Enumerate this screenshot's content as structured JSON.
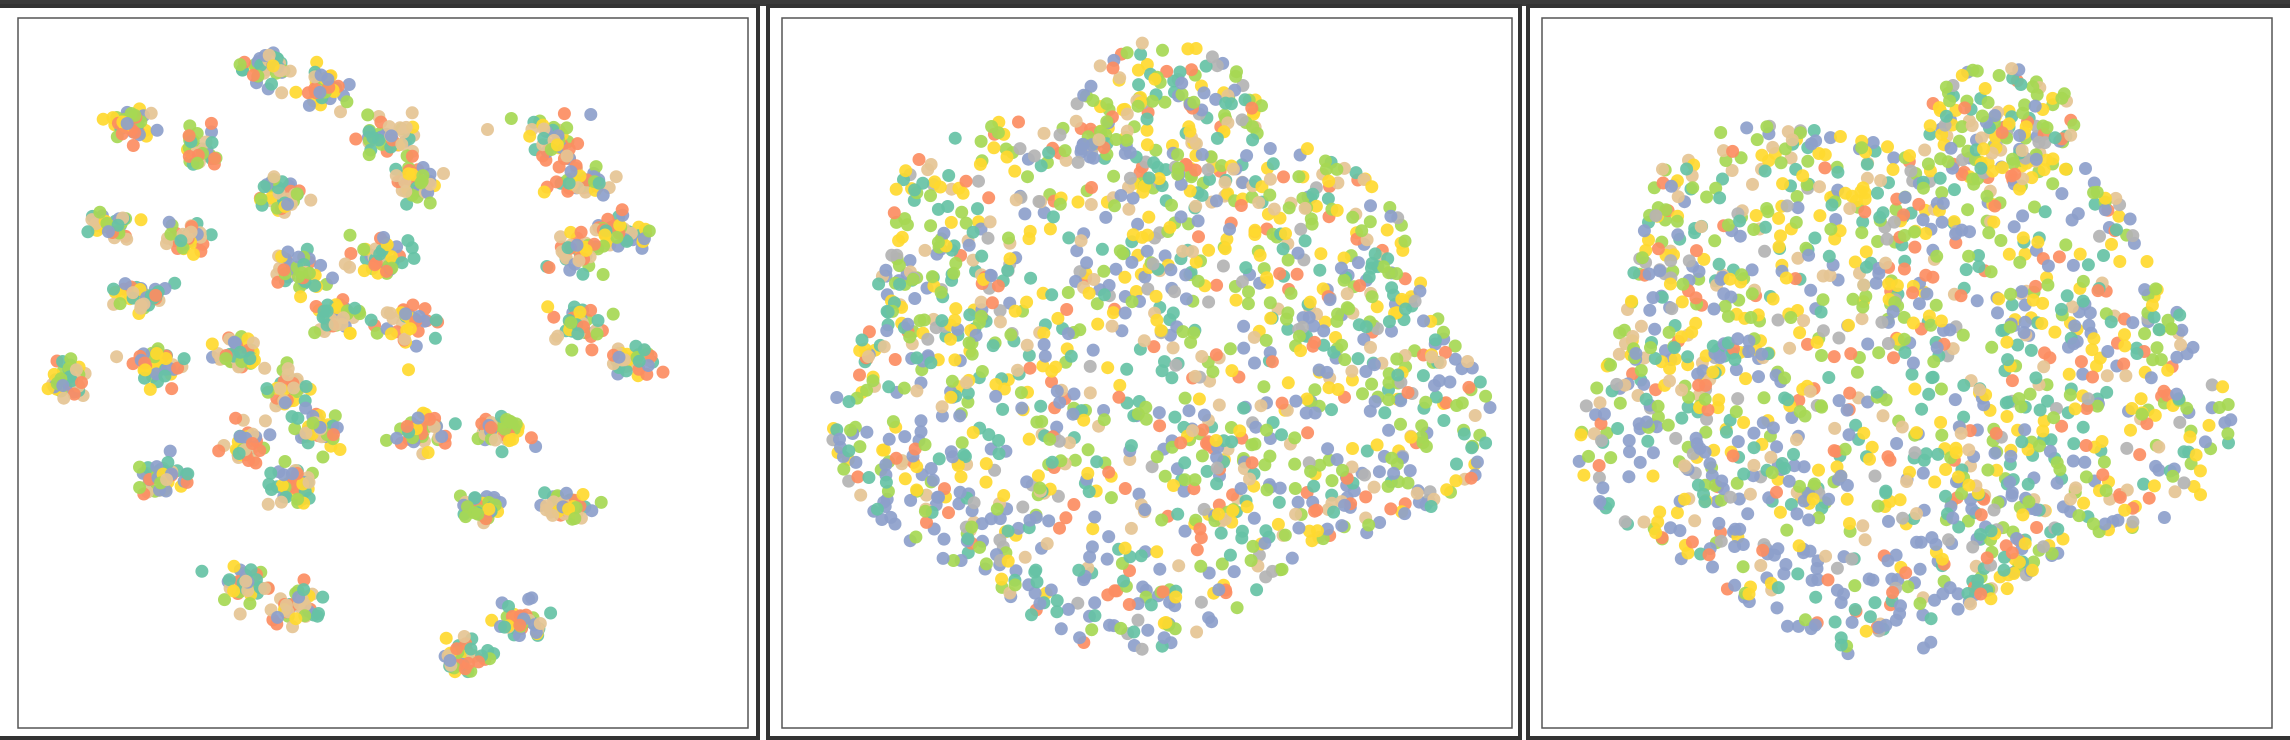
{
  "palette": [
    "#8da0cb",
    "#a6d854",
    "#ffd92f",
    "#66c2a5",
    "#fc8d62",
    "#e5c494",
    "#b3b3b3"
  ],
  "chart_data": [
    {
      "type": "scatter",
      "title": "",
      "xlabel": "",
      "ylabel": "",
      "axes_ticks": false,
      "grid": false,
      "legend": "none",
      "layout": "clustered",
      "clusters": [
        [
          0.34,
          0.07,
          0.04,
          0.03
        ],
        [
          0.42,
          0.1,
          0.04,
          0.03
        ],
        [
          0.15,
          0.15,
          0.03,
          0.025
        ],
        [
          0.25,
          0.19,
          0.03,
          0.035
        ],
        [
          0.51,
          0.17,
          0.05,
          0.035
        ],
        [
          0.55,
          0.23,
          0.04,
          0.035
        ],
        [
          0.36,
          0.25,
          0.04,
          0.035
        ],
        [
          0.13,
          0.29,
          0.035,
          0.025
        ],
        [
          0.23,
          0.31,
          0.035,
          0.03
        ],
        [
          0.5,
          0.34,
          0.06,
          0.03
        ],
        [
          0.38,
          0.36,
          0.04,
          0.035
        ],
        [
          0.44,
          0.42,
          0.04,
          0.03
        ],
        [
          0.17,
          0.39,
          0.05,
          0.025
        ],
        [
          0.54,
          0.43,
          0.05,
          0.04
        ],
        [
          0.07,
          0.51,
          0.03,
          0.035
        ],
        [
          0.19,
          0.49,
          0.04,
          0.035
        ],
        [
          0.3,
          0.47,
          0.035,
          0.03
        ],
        [
          0.37,
          0.52,
          0.035,
          0.035
        ],
        [
          0.41,
          0.58,
          0.04,
          0.035
        ],
        [
          0.55,
          0.58,
          0.04,
          0.03
        ],
        [
          0.66,
          0.58,
          0.04,
          0.03
        ],
        [
          0.2,
          0.65,
          0.035,
          0.035
        ],
        [
          0.31,
          0.6,
          0.04,
          0.035
        ],
        [
          0.38,
          0.66,
          0.04,
          0.035
        ],
        [
          0.64,
          0.69,
          0.04,
          0.025
        ],
        [
          0.75,
          0.69,
          0.04,
          0.025
        ],
        [
          0.31,
          0.8,
          0.04,
          0.03
        ],
        [
          0.38,
          0.83,
          0.05,
          0.03
        ],
        [
          0.61,
          0.9,
          0.04,
          0.03
        ],
        [
          0.69,
          0.85,
          0.035,
          0.035
        ],
        [
          0.73,
          0.17,
          0.05,
          0.035
        ],
        [
          0.78,
          0.23,
          0.05,
          0.03
        ],
        [
          0.83,
          0.3,
          0.05,
          0.03
        ],
        [
          0.77,
          0.33,
          0.04,
          0.03
        ],
        [
          0.77,
          0.43,
          0.045,
          0.035
        ],
        [
          0.84,
          0.48,
          0.04,
          0.03
        ]
      ],
      "points_per_cluster": 40
    },
    {
      "type": "scatter",
      "title": "",
      "xlabel": "",
      "ylabel": "",
      "axes_ticks": false,
      "grid": false,
      "legend": "none",
      "layout": "cloud",
      "cloud": {
        "cx": 0.5,
        "cy": 0.5,
        "rx": 0.44,
        "ry": 0.36,
        "lobe_cx": 0.53,
        "lobe_cy": 0.14,
        "lobe_rx": 0.13,
        "lobe_ry": 0.11
      },
      "points_count": 1500
    },
    {
      "type": "scatter",
      "title": "",
      "xlabel": "",
      "ylabel": "",
      "axes_ticks": false,
      "grid": false,
      "legend": "none",
      "layout": "cloud",
      "cloud": {
        "cx": 0.48,
        "cy": 0.51,
        "rx": 0.43,
        "ry": 0.36,
        "lobe_cx": 0.63,
        "lobe_cy": 0.15,
        "lobe_rx": 0.1,
        "lobe_ry": 0.09
      },
      "points_count": 1500
    }
  ]
}
